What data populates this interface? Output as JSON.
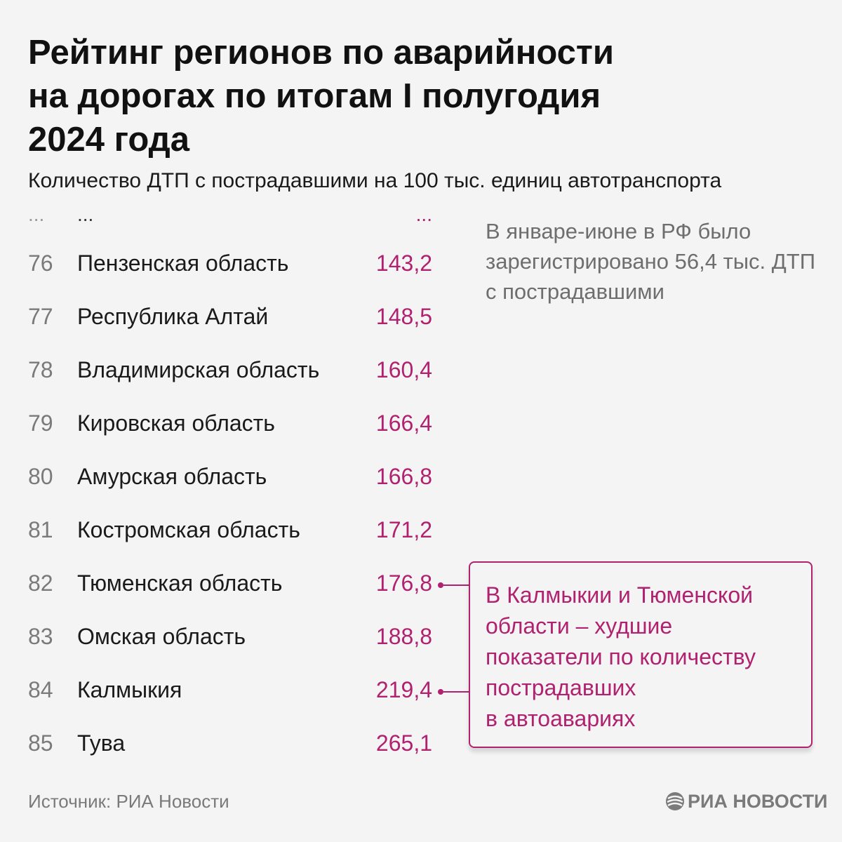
{
  "header": {
    "title_lines": [
      "Рейтинг регионов по аварийности",
      "на дорогах по итогам I полугодия",
      "2024 года"
    ],
    "subtitle": "Количество ДТП с пострадавшими на 100 тыс. единиц автотранспорта"
  },
  "ellipsis": {
    "rank": "...",
    "region": "...",
    "value": "..."
  },
  "chart_data": {
    "type": "table",
    "title": "Рейтинг регионов по аварийности на дорогах по итогам I полугодия 2024 года",
    "subtitle": "Количество ДТП с пострадавшими на 100 тыс. единиц автотранспорта",
    "rows": [
      {
        "rank": "76",
        "region": "Пензенская область",
        "value": "143,2",
        "highlight": false
      },
      {
        "rank": "77",
        "region": "Республика Алтай",
        "value": "148,5",
        "highlight": false
      },
      {
        "rank": "78",
        "region": "Владимирская область",
        "value": "160,4",
        "highlight": false
      },
      {
        "rank": "79",
        "region": "Кировская область",
        "value": "166,4",
        "highlight": false
      },
      {
        "rank": "80",
        "region": "Амурская область",
        "value": "166,8",
        "highlight": false
      },
      {
        "rank": "81",
        "region": "Костромская область",
        "value": "171,2",
        "highlight": false
      },
      {
        "rank": "82",
        "region": "Тюменская область",
        "value": "176,8",
        "highlight": true
      },
      {
        "rank": "83",
        "region": "Омская область",
        "value": "188,8",
        "highlight": false
      },
      {
        "rank": "84",
        "region": "Калмыкия",
        "value": "219,4",
        "highlight": true
      },
      {
        "rank": "85",
        "region": "Тува",
        "value": "265,1",
        "highlight": false
      }
    ]
  },
  "note": "В январе-июне в РФ было зарегистрировано 56,4 тыс. ДТП с пострадавшими",
  "callout": {
    "lines": [
      "В Калмыкии и Тюменской",
      "области – худшие",
      "показатели по количеству",
      "пострадавших",
      "в автоавариях"
    ]
  },
  "footer": {
    "source": "Источник: РИА Новости",
    "logo_text": "РИА НОВОСТИ"
  },
  "colors": {
    "accent": "#b0226f",
    "background": "#f4f4f4",
    "muted": "#7a7a7a"
  }
}
